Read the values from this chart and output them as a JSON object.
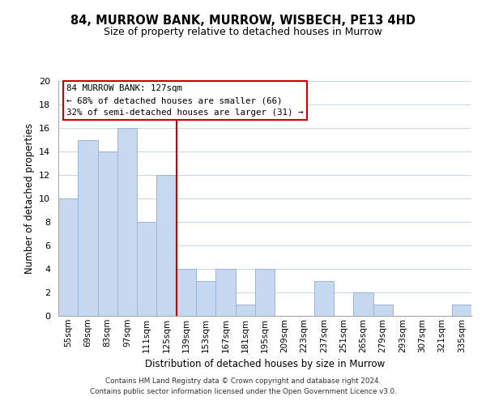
{
  "title": "84, MURROW BANK, MURROW, WISBECH, PE13 4HD",
  "subtitle": "Size of property relative to detached houses in Murrow",
  "xlabel": "Distribution of detached houses by size in Murrow",
  "ylabel": "Number of detached properties",
  "bar_labels": [
    "55sqm",
    "69sqm",
    "83sqm",
    "97sqm",
    "111sqm",
    "125sqm",
    "139sqm",
    "153sqm",
    "167sqm",
    "181sqm",
    "195sqm",
    "209sqm",
    "223sqm",
    "237sqm",
    "251sqm",
    "265sqm",
    "279sqm",
    "293sqm",
    "307sqm",
    "321sqm",
    "335sqm"
  ],
  "bar_values": [
    10,
    15,
    14,
    16,
    8,
    12,
    4,
    3,
    4,
    1,
    4,
    0,
    0,
    3,
    0,
    2,
    1,
    0,
    0,
    0,
    1
  ],
  "bar_color": "#c6d9f0",
  "bar_edge_color": "#9ab5d8",
  "vline_x_idx": 5,
  "vline_color": "#cc0000",
  "ylim": [
    0,
    20
  ],
  "yticks": [
    0,
    2,
    4,
    6,
    8,
    10,
    12,
    14,
    16,
    18,
    20
  ],
  "annotation_title": "84 MURROW BANK: 127sqm",
  "annotation_line1": "← 68% of detached houses are smaller (66)",
  "annotation_line2": "32% of semi-detached houses are larger (31) →",
  "footer1": "Contains HM Land Registry data © Crown copyright and database right 2024.",
  "footer2": "Contains public sector information licensed under the Open Government Licence v3.0."
}
